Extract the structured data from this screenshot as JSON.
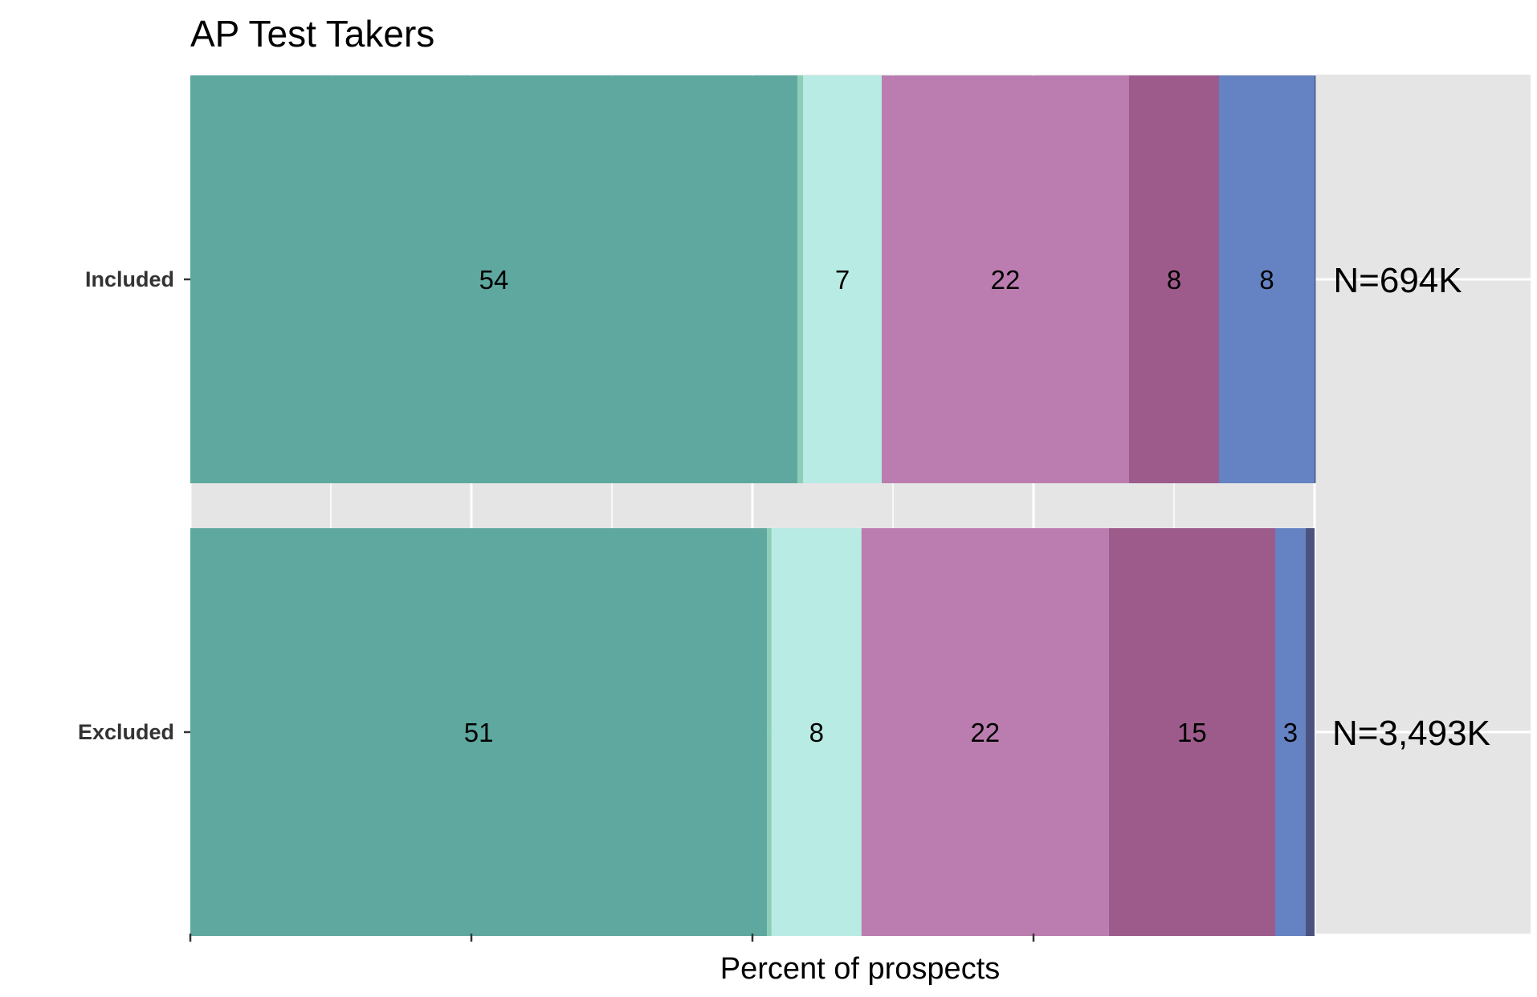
{
  "chart_data": {
    "type": "bar",
    "orientation": "horizontal",
    "stacked": true,
    "title": "AP Test Takers",
    "xlabel": "Percent of prospects",
    "ylabel": "",
    "xlim": [
      0,
      100
    ],
    "grid": true,
    "legend": "none",
    "categories": [
      "Included",
      "Excluded"
    ],
    "segment_colors": [
      "#5ea89f",
      "#8ccfb6",
      "#b8ebe3",
      "#bb7daf",
      "#9d5b8c",
      "#6582c2",
      "#4a5280"
    ],
    "rows": [
      {
        "category": "Included",
        "n_label": "N=694K",
        "segments": [
          {
            "value": 54,
            "label": "54"
          },
          {
            "value": 0.5,
            "label": ""
          },
          {
            "value": 7,
            "label": "7"
          },
          {
            "value": 22,
            "label": "22"
          },
          {
            "value": 8,
            "label": "8"
          },
          {
            "value": 8.5,
            "label": "8"
          },
          {
            "value": 0.1,
            "label": ""
          }
        ]
      },
      {
        "category": "Excluded",
        "n_label": "N=3,493K",
        "segments": [
          {
            "value": 51.3,
            "label": "51"
          },
          {
            "value": 0.4,
            "label": ""
          },
          {
            "value": 8,
            "label": "8"
          },
          {
            "value": 22,
            "label": "22"
          },
          {
            "value": 14.8,
            "label": "15"
          },
          {
            "value": 2.7,
            "label": "3"
          },
          {
            "value": 0.8,
            "label": ""
          }
        ]
      }
    ]
  }
}
